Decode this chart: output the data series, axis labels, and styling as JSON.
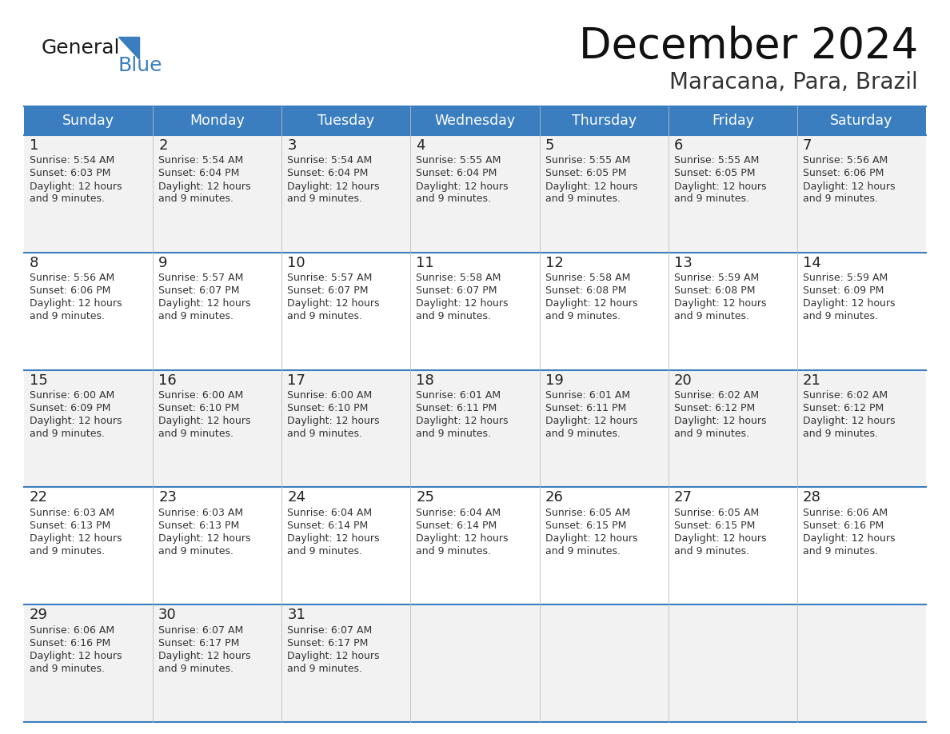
{
  "title": "December 2024",
  "subtitle": "Maracana, Para, Brazil",
  "header_color": "#3A7EBF",
  "header_text_color": "#FFFFFF",
  "cell_bg_even": "#F2F2F2",
  "cell_bg_odd": "#FFFFFF",
  "text_color": "#333333",
  "line_color": "#3A7EBF",
  "days_of_week": [
    "Sunday",
    "Monday",
    "Tuesday",
    "Wednesday",
    "Thursday",
    "Friday",
    "Saturday"
  ],
  "weeks": [
    [
      {
        "day": 1,
        "sunrise": "5:54 AM",
        "sunset": "6:03 PM"
      },
      {
        "day": 2,
        "sunrise": "5:54 AM",
        "sunset": "6:04 PM"
      },
      {
        "day": 3,
        "sunrise": "5:54 AM",
        "sunset": "6:04 PM"
      },
      {
        "day": 4,
        "sunrise": "5:55 AM",
        "sunset": "6:04 PM"
      },
      {
        "day": 5,
        "sunrise": "5:55 AM",
        "sunset": "6:05 PM"
      },
      {
        "day": 6,
        "sunrise": "5:55 AM",
        "sunset": "6:05 PM"
      },
      {
        "day": 7,
        "sunrise": "5:56 AM",
        "sunset": "6:06 PM"
      }
    ],
    [
      {
        "day": 8,
        "sunrise": "5:56 AM",
        "sunset": "6:06 PM"
      },
      {
        "day": 9,
        "sunrise": "5:57 AM",
        "sunset": "6:07 PM"
      },
      {
        "day": 10,
        "sunrise": "5:57 AM",
        "sunset": "6:07 PM"
      },
      {
        "day": 11,
        "sunrise": "5:58 AM",
        "sunset": "6:07 PM"
      },
      {
        "day": 12,
        "sunrise": "5:58 AM",
        "sunset": "6:08 PM"
      },
      {
        "day": 13,
        "sunrise": "5:59 AM",
        "sunset": "6:08 PM"
      },
      {
        "day": 14,
        "sunrise": "5:59 AM",
        "sunset": "6:09 PM"
      }
    ],
    [
      {
        "day": 15,
        "sunrise": "6:00 AM",
        "sunset": "6:09 PM"
      },
      {
        "day": 16,
        "sunrise": "6:00 AM",
        "sunset": "6:10 PM"
      },
      {
        "day": 17,
        "sunrise": "6:00 AM",
        "sunset": "6:10 PM"
      },
      {
        "day": 18,
        "sunrise": "6:01 AM",
        "sunset": "6:11 PM"
      },
      {
        "day": 19,
        "sunrise": "6:01 AM",
        "sunset": "6:11 PM"
      },
      {
        "day": 20,
        "sunrise": "6:02 AM",
        "sunset": "6:12 PM"
      },
      {
        "day": 21,
        "sunrise": "6:02 AM",
        "sunset": "6:12 PM"
      }
    ],
    [
      {
        "day": 22,
        "sunrise": "6:03 AM",
        "sunset": "6:13 PM"
      },
      {
        "day": 23,
        "sunrise": "6:03 AM",
        "sunset": "6:13 PM"
      },
      {
        "day": 24,
        "sunrise": "6:04 AM",
        "sunset": "6:14 PM"
      },
      {
        "day": 25,
        "sunrise": "6:04 AM",
        "sunset": "6:14 PM"
      },
      {
        "day": 26,
        "sunrise": "6:05 AM",
        "sunset": "6:15 PM"
      },
      {
        "day": 27,
        "sunrise": "6:05 AM",
        "sunset": "6:15 PM"
      },
      {
        "day": 28,
        "sunrise": "6:06 AM",
        "sunset": "6:16 PM"
      }
    ],
    [
      {
        "day": 29,
        "sunrise": "6:06 AM",
        "sunset": "6:16 PM"
      },
      {
        "day": 30,
        "sunrise": "6:07 AM",
        "sunset": "6:17 PM"
      },
      {
        "day": 31,
        "sunrise": "6:07 AM",
        "sunset": "6:17 PM"
      },
      null,
      null,
      null,
      null
    ]
  ],
  "daylight_line1": "Daylight: 12 hours",
  "daylight_line2": "and 9 minutes.",
  "logo_general": "General",
  "logo_blue": "Blue",
  "background_color": "#FFFFFF"
}
